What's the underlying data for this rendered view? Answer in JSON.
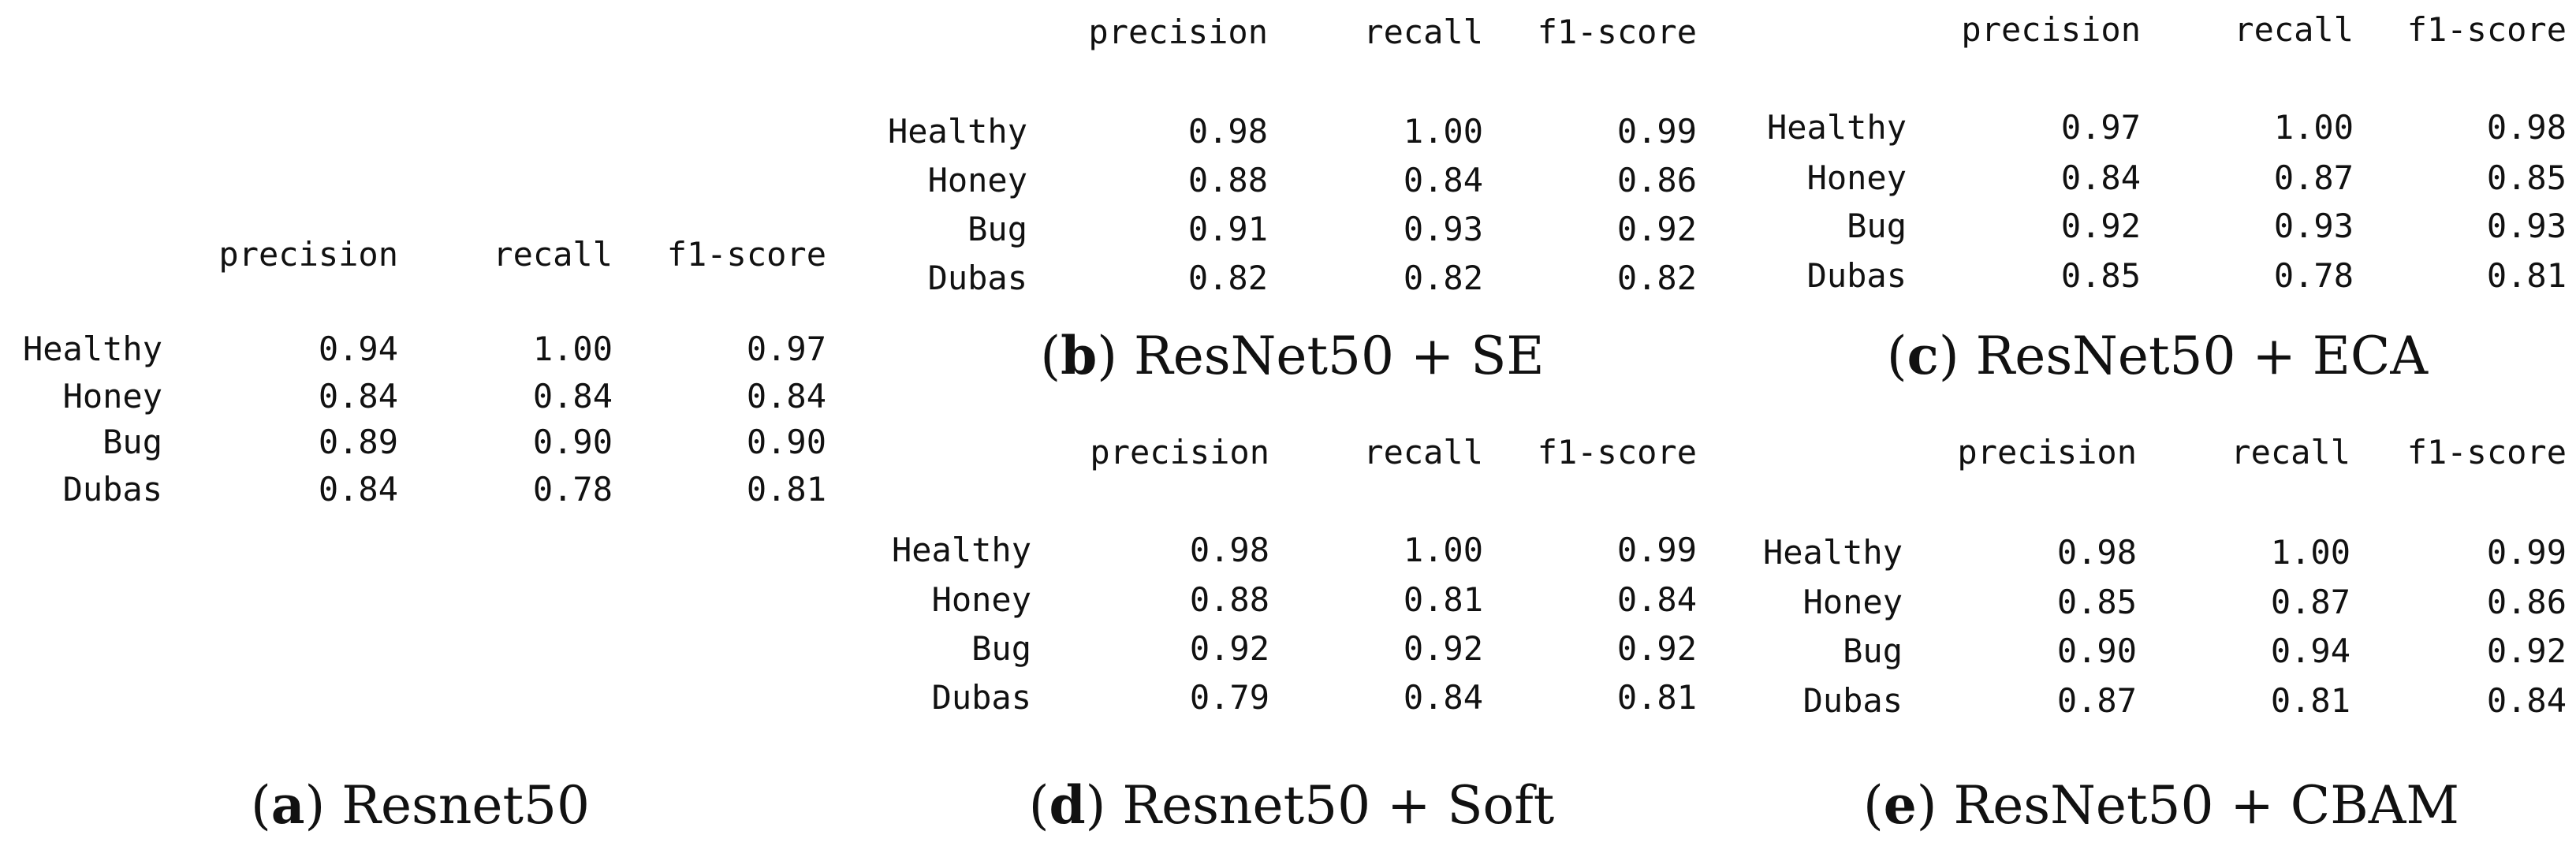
{
  "headers": [
    "precision",
    "recall",
    "f1-score"
  ],
  "panels": [
    {
      "id": "a",
      "caption_letter": "a",
      "caption_text": "Resnet50",
      "rows": [
        {
          "label": "Healthy",
          "values": [
            "0.94",
            "1.00",
            "0.97"
          ]
        },
        {
          "label": "Honey",
          "values": [
            "0.84",
            "0.84",
            "0.84"
          ]
        },
        {
          "label": "Bug",
          "values": [
            "0.89",
            "0.90",
            "0.90"
          ]
        },
        {
          "label": "Dubas",
          "values": [
            "0.84",
            "0.78",
            "0.81"
          ]
        }
      ]
    },
    {
      "id": "b",
      "caption_letter": "b",
      "caption_text": "ResNet50 + SE",
      "rows": [
        {
          "label": "Healthy",
          "values": [
            "0.98",
            "1.00",
            "0.99"
          ]
        },
        {
          "label": "Honey",
          "values": [
            "0.88",
            "0.84",
            "0.86"
          ]
        },
        {
          "label": "Bug",
          "values": [
            "0.91",
            "0.93",
            "0.92"
          ]
        },
        {
          "label": "Dubas",
          "values": [
            "0.82",
            "0.82",
            "0.82"
          ]
        }
      ]
    },
    {
      "id": "c",
      "caption_letter": "c",
      "caption_text": "ResNet50 + ECA",
      "rows": [
        {
          "label": "Healthy",
          "values": [
            "0.97",
            "1.00",
            "0.98"
          ]
        },
        {
          "label": "Honey",
          "values": [
            "0.84",
            "0.87",
            "0.85"
          ]
        },
        {
          "label": "Bug",
          "values": [
            "0.92",
            "0.93",
            "0.93"
          ]
        },
        {
          "label": "Dubas",
          "values": [
            "0.85",
            "0.78",
            "0.81"
          ]
        }
      ]
    },
    {
      "id": "d",
      "caption_letter": "d",
      "caption_text": "Resnet50 + Soft",
      "rows": [
        {
          "label": "Healthy",
          "values": [
            "0.98",
            "1.00",
            "0.99"
          ]
        },
        {
          "label": "Honey",
          "values": [
            "0.88",
            "0.81",
            "0.84"
          ]
        },
        {
          "label": "Bug",
          "values": [
            "0.92",
            "0.92",
            "0.92"
          ]
        },
        {
          "label": "Dubas",
          "values": [
            "0.79",
            "0.84",
            "0.81"
          ]
        }
      ]
    },
    {
      "id": "e",
      "caption_letter": "e",
      "caption_text": "ResNet50 + CBAM",
      "rows": [
        {
          "label": "Healthy",
          "values": [
            "0.98",
            "1.00",
            "0.99"
          ]
        },
        {
          "label": "Honey",
          "values": [
            "0.85",
            "0.87",
            "0.86"
          ]
        },
        {
          "label": "Bug",
          "values": [
            "0.90",
            "0.94",
            "0.92"
          ]
        },
        {
          "label": "Dubas",
          "values": [
            "0.87",
            "0.81",
            "0.84"
          ]
        }
      ]
    }
  ]
}
